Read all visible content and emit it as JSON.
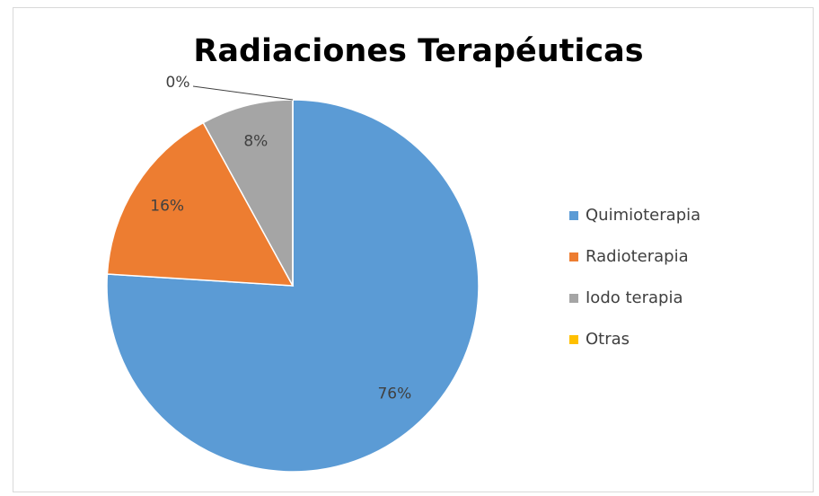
{
  "chart_data": {
    "type": "pie",
    "title": "Radiaciones Terapéuticas",
    "categories": [
      "Quimioterapia",
      "Radioterapia",
      "Iodo terapia",
      "Otras"
    ],
    "values": [
      76,
      16,
      8,
      0
    ],
    "value_labels": [
      "76%",
      "16%",
      "8%",
      "0%"
    ],
    "colors": [
      "#5b9bd5",
      "#ed7d31",
      "#a5a5a5",
      "#ffc000"
    ],
    "legend": "right"
  }
}
